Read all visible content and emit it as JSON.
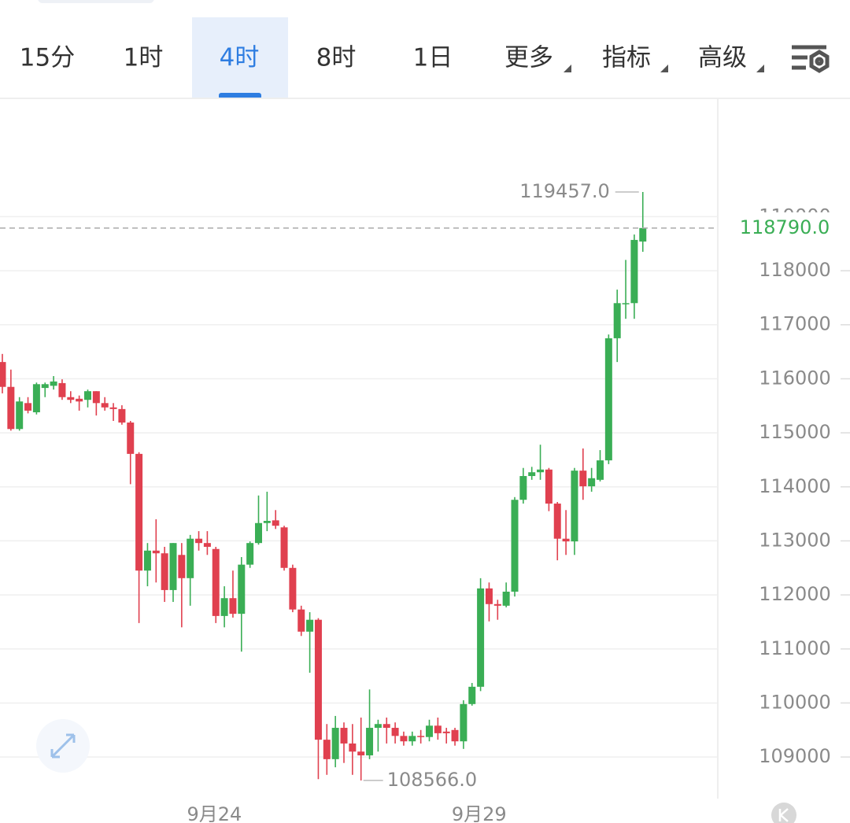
{
  "tabs": [
    "15分",
    "1时",
    "4时",
    "8时",
    "1日",
    "更多",
    "指标",
    "高级"
  ],
  "chart_data": {
    "type": "candlestick",
    "categories": [
      null,
      null,
      null,
      null,
      null,
      null,
      null,
      null,
      null,
      null,
      null,
      null,
      null,
      null,
      null,
      null,
      null,
      null,
      null,
      null,
      null,
      null,
      null,
      null,
      "9月24",
      null,
      null,
      null,
      null,
      null,
      null,
      null,
      null,
      null,
      null,
      null,
      null,
      null,
      null,
      null,
      null,
      null,
      null,
      null,
      null,
      null,
      null,
      null,
      null,
      null,
      null,
      null,
      null,
      null,
      null,
      "9月29",
      null,
      null,
      null,
      null,
      null,
      null,
      null,
      null,
      null,
      null,
      null,
      null,
      null,
      null,
      null,
      null,
      null,
      null,
      null,
      null
    ],
    "open": [
      116310,
      115850,
      115070,
      115550,
      115380,
      115830,
      115870,
      115920,
      115660,
      115630,
      115610,
      115770,
      115550,
      115470,
      115440,
      115190,
      114610,
      112450,
      112820,
      112770,
      112090,
      112740,
      112310,
      113040,
      112960,
      112850,
      111610,
      111940,
      111650,
      112560,
      112960,
      113330,
      113380,
      113250,
      112500,
      111730,
      111320,
      111540,
      109320,
      108960,
      109540,
      109250,
      109100,
      109030,
      109540,
      109610,
      109540,
      109390,
      109290,
      109390,
      109370,
      109580,
      109470,
      109500,
      109290,
      109980,
      110300,
      112120,
      111830,
      111800,
      112060,
      113760,
      114200,
      114270,
      114320,
      113690,
      113040,
      112990,
      114300,
      114010,
      114130,
      114490,
      116750,
      117400,
      117400,
      118540
    ],
    "high": [
      116460,
      116170,
      115660,
      115660,
      115930,
      115930,
      116050,
      115990,
      115770,
      115690,
      115800,
      115770,
      115660,
      115550,
      115510,
      115220,
      114640,
      112960,
      113400,
      112890,
      112960,
      112960,
      113110,
      113180,
      113180,
      112890,
      112160,
      112450,
      112700,
      112990,
      113840,
      113910,
      113570,
      113280,
      112560,
      111800,
      111680,
      111570,
      109610,
      109760,
      109640,
      109610,
      109730,
      110250,
      109690,
      109730,
      109640,
      109470,
      109470,
      109500,
      109690,
      109730,
      109540,
      109540,
      110050,
      110370,
      112310,
      112230,
      111910,
      112230,
      113810,
      114350,
      114370,
      114780,
      114350,
      113720,
      113570,
      114350,
      114710,
      114350,
      114680,
      116820,
      117650,
      118200,
      118670,
      119457
    ],
    "low": [
      115730,
      115040,
      115040,
      115360,
      115340,
      115660,
      115800,
      115610,
      115550,
      115410,
      115470,
      115320,
      115410,
      115220,
      115150,
      114050,
      111480,
      112160,
      112230,
      111870,
      111870,
      111400,
      111800,
      112820,
      112740,
      111480,
      111400,
      111580,
      110950,
      112500,
      112930,
      113180,
      113220,
      112450,
      111680,
      111240,
      110560,
      108590,
      108670,
      108810,
      108890,
      108670,
      108566,
      108960,
      109100,
      109250,
      109250,
      109210,
      109210,
      109250,
      109290,
      109320,
      109250,
      109210,
      109150,
      109950,
      110220,
      111510,
      111540,
      111770,
      111970,
      113690,
      114130,
      114130,
      113550,
      112640,
      112740,
      112740,
      113760,
      113910,
      114100,
      114420,
      116310,
      117110,
      117110,
      118350
    ],
    "close": [
      115850,
      115070,
      115580,
      115410,
      115900,
      115900,
      115950,
      115660,
      115610,
      115580,
      115770,
      115550,
      115470,
      115440,
      115190,
      114610,
      112450,
      112820,
      112770,
      112090,
      112960,
      112310,
      113040,
      112960,
      112890,
      111610,
      111940,
      111650,
      112560,
      112960,
      113330,
      113370,
      113280,
      112500,
      111730,
      111320,
      111540,
      109320,
      108960,
      109540,
      109250,
      109100,
      109030,
      109540,
      109610,
      109540,
      109390,
      109290,
      109390,
      109370,
      109580,
      109440,
      109440,
      109290,
      109980,
      110300,
      112120,
      111830,
      111800,
      112060,
      113760,
      114200,
      114270,
      114320,
      113690,
      113040,
      112990,
      114300,
      114010,
      114160,
      114490,
      116750,
      117400,
      117400,
      118570,
      118790
    ],
    "up_color": "#3aae55",
    "down_color": "#e0404f",
    "ylim": [
      108230,
      121190
    ],
    "yticks": [
      109000,
      110000,
      111000,
      112000,
      113000,
      114000,
      115000,
      116000,
      117000,
      118000,
      119000
    ],
    "grid": true,
    "high_label": {
      "value": 119457,
      "label": "119457.0"
    },
    "low_label": {
      "value": 108566,
      "label": "108566.0"
    },
    "last_price": {
      "value": 118790,
      "label": "118790.0"
    }
  }
}
